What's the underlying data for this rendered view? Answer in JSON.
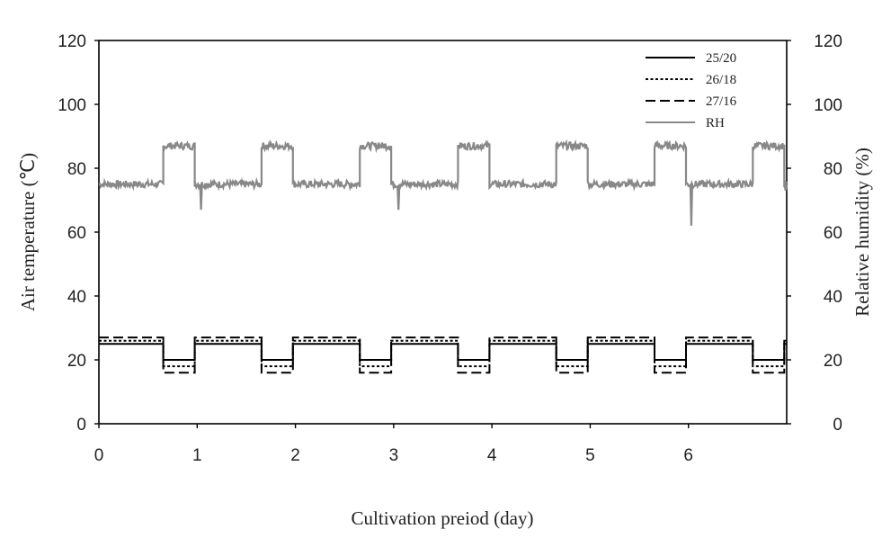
{
  "chart_data": {
    "type": "line",
    "xlabel": "Cultivation preiod (day)",
    "ylabel_left": "Air temperature (℃)",
    "ylabel_right": "Relative humidity (%)",
    "xlim": [
      0,
      7
    ],
    "ylim_left": [
      0,
      120
    ],
    "ylim_right": [
      0,
      120
    ],
    "x_ticks": [
      "0",
      "1",
      "2",
      "3",
      "4",
      "5",
      "6"
    ],
    "x_tick_values": [
      0,
      1,
      2,
      3,
      4,
      5,
      6
    ],
    "y_ticks": [
      "0",
      "20",
      "40",
      "60",
      "80",
      "100",
      "120"
    ],
    "y_tick_values": [
      0,
      20,
      40,
      60,
      80,
      100,
      120
    ],
    "grid": false,
    "legend_position": "top-right",
    "series": [
      {
        "name": "25/20",
        "axis": "left",
        "color": "#000000",
        "dash": "solid",
        "day_value": 25,
        "night_value": 20,
        "transitions": [
          0.655,
          0.975,
          1.655,
          1.975,
          2.655,
          2.975,
          3.655,
          3.975,
          4.655,
          4.975,
          5.655,
          5.975,
          6.655,
          6.975
        ],
        "start": 0,
        "end": 7
      },
      {
        "name": "26/18",
        "axis": "left",
        "color": "#000000",
        "dash": "dotted",
        "day_value": 26,
        "night_value": 18,
        "transitions": [
          0.655,
          0.975,
          1.655,
          1.975,
          2.655,
          2.975,
          3.655,
          3.975,
          4.655,
          4.975,
          5.655,
          5.975,
          6.655,
          6.975
        ],
        "start": 0,
        "end": 7
      },
      {
        "name": "27/16",
        "axis": "left",
        "color": "#000000",
        "dash": "dashed",
        "day_value": 27,
        "night_value": 16,
        "transitions": [
          0.655,
          0.975,
          1.655,
          1.975,
          2.655,
          2.975,
          3.655,
          3.975,
          4.655,
          4.975,
          5.655,
          5.975,
          6.655,
          6.975
        ],
        "start": 0,
        "end": 7
      },
      {
        "name": "RH",
        "axis": "right",
        "color": "#888888",
        "dash": "solid",
        "day_value": 75,
        "night_value": 87,
        "transitions": [
          0.655,
          0.975,
          1.655,
          1.975,
          2.655,
          2.975,
          3.655,
          3.975,
          4.655,
          4.975,
          5.655,
          5.975,
          6.655,
          6.975
        ],
        "start": 0,
        "end": 7,
        "dips": [
          [
            1.03,
            67
          ],
          [
            3.04,
            67
          ],
          [
            6.02,
            62
          ],
          [
            6.98,
            73
          ]
        ]
      }
    ]
  }
}
